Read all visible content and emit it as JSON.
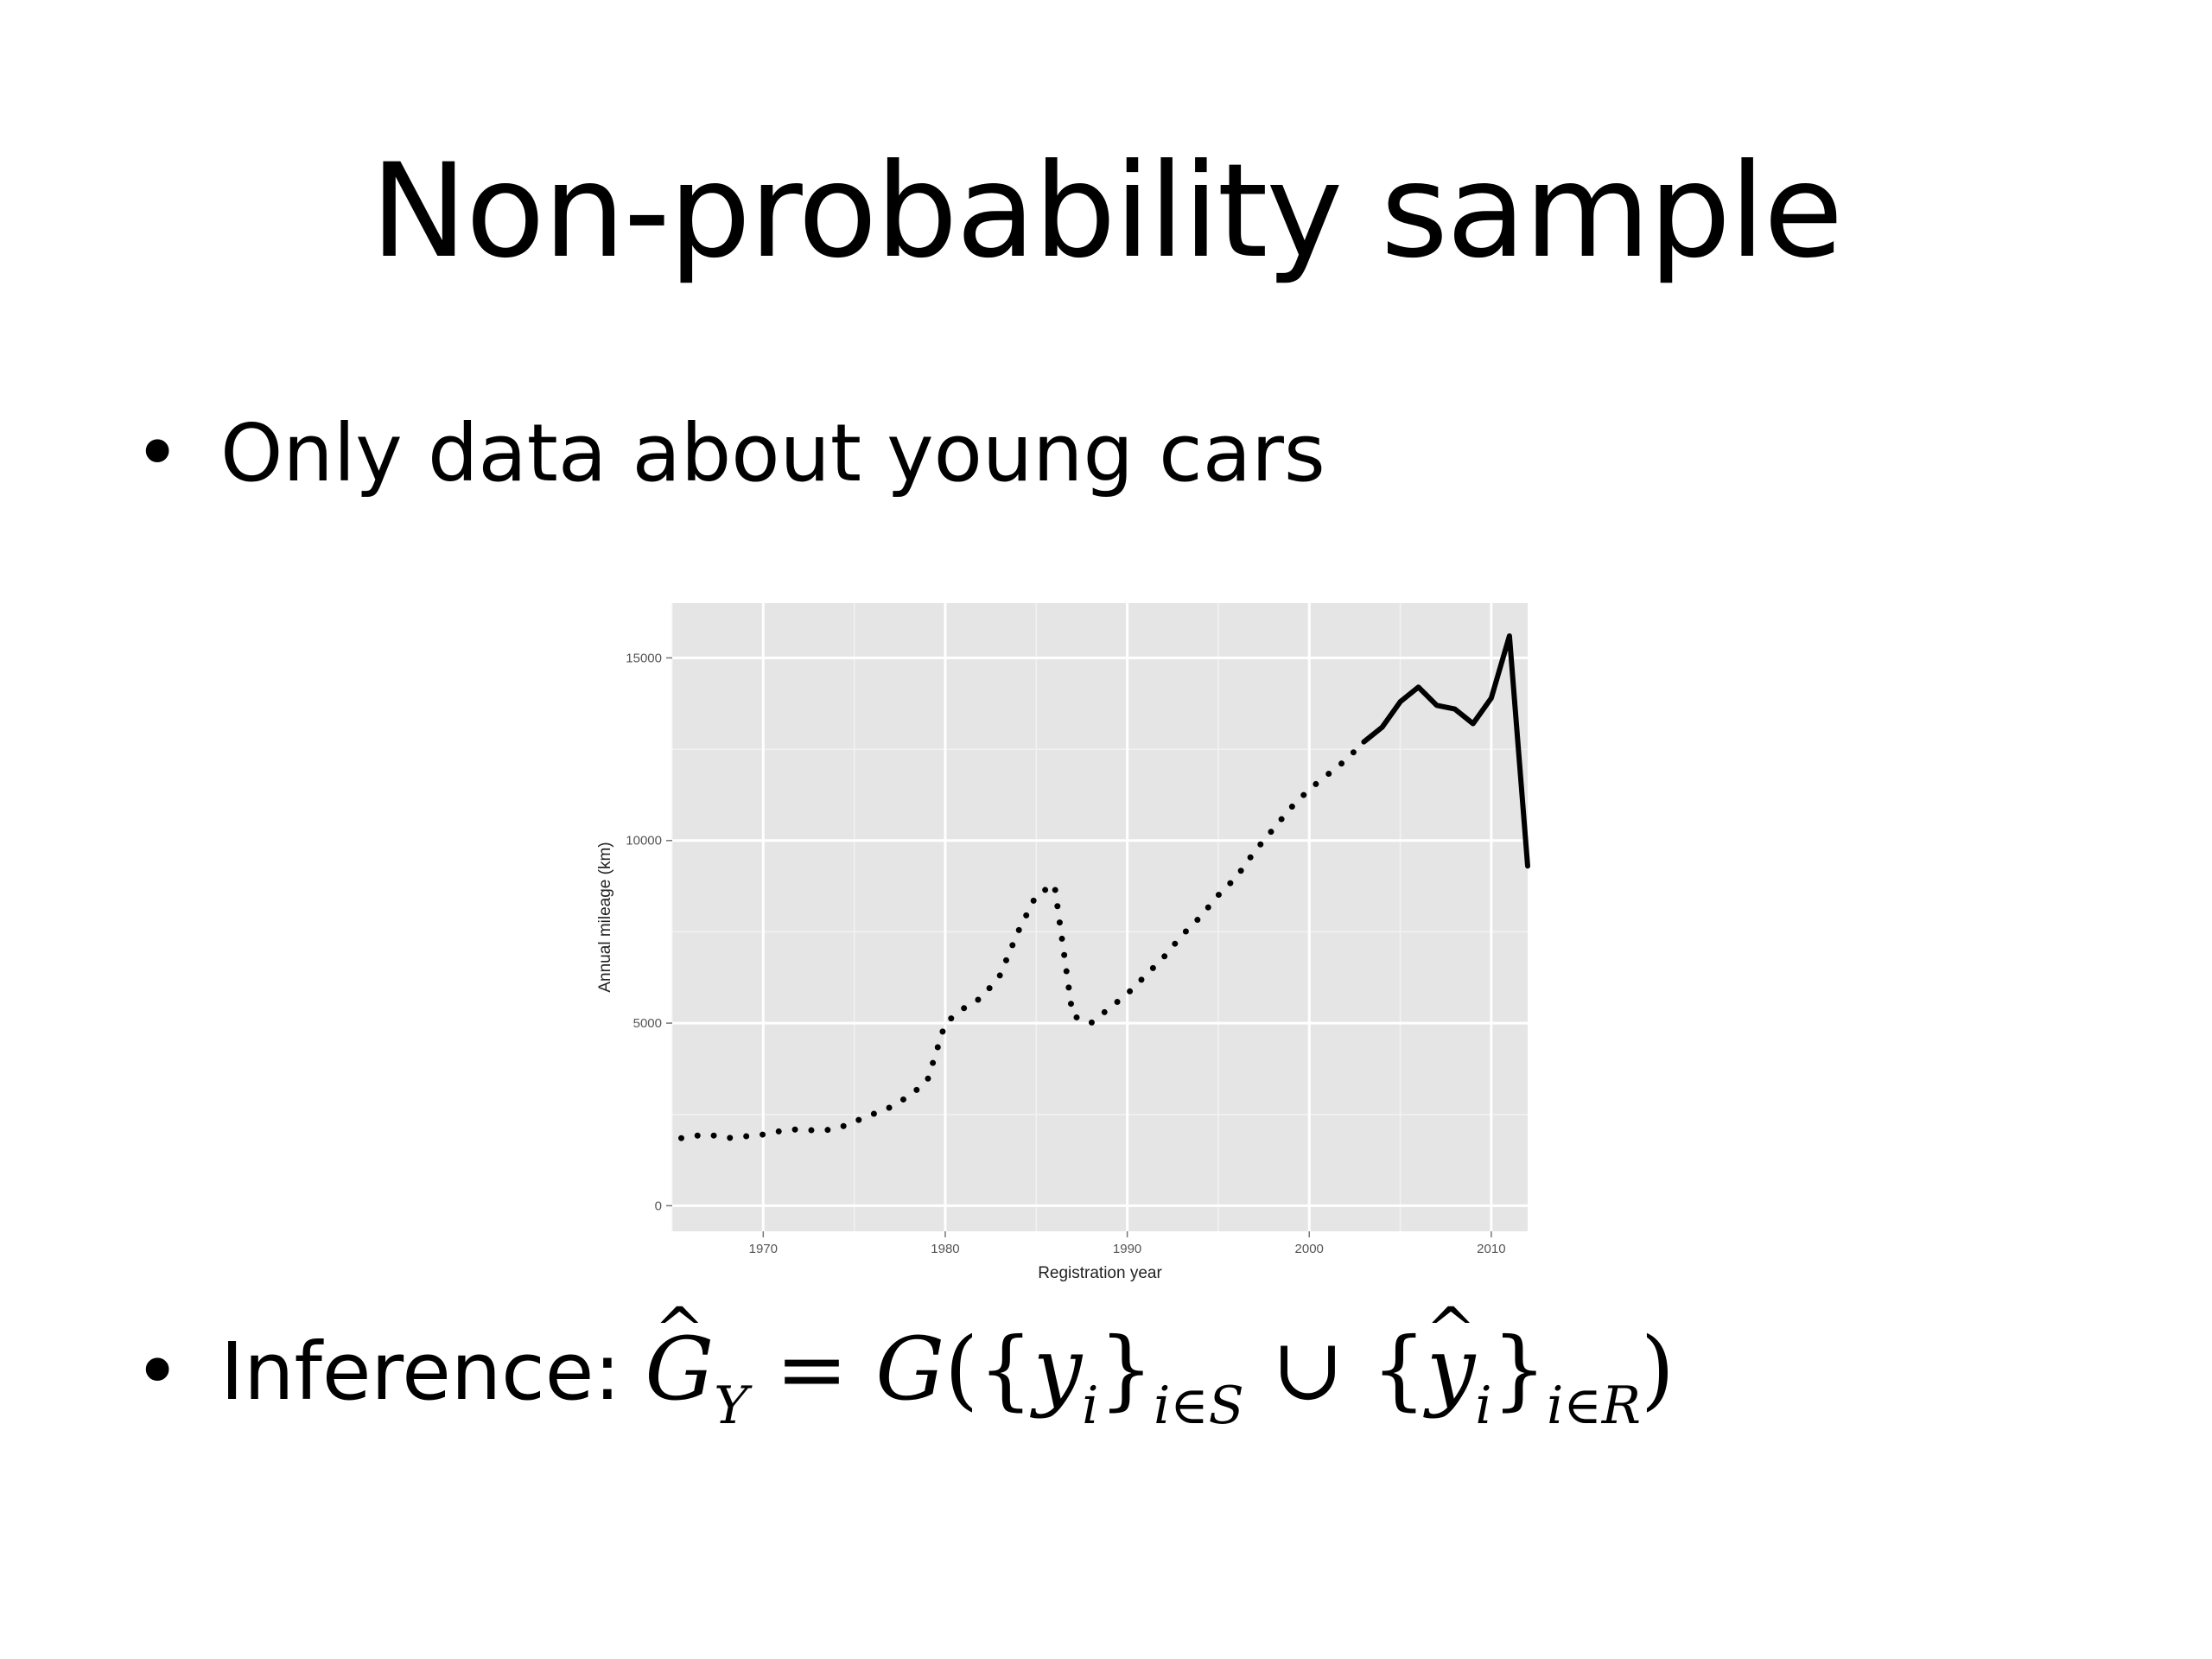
{
  "slide": {
    "title": "Non-probability sample",
    "bullet_symbol": "•",
    "bullets": [
      {
        "text": "Only data about young cars"
      },
      {
        "text": "Inference:",
        "formula": {
          "lhs": "G",
          "lhs_sub": "Y",
          "eq": "=",
          "fn": "G",
          "open": "({",
          "y1": "y",
          "y1_sub": "i",
          "close1": "}",
          "set1_sub": "i∈S",
          "union": "∪",
          "open2": "{",
          "y2": "y",
          "y2_sub": "i",
          "close2": "}",
          "set2_sub": "i∈R",
          "end": ")"
        }
      }
    ]
  },
  "chart_data": {
    "type": "line",
    "xlabel": "Registration year",
    "ylabel": "Annual mileage (km)",
    "xlim": [
      1965,
      2012
    ],
    "ylim": [
      -700,
      16500
    ],
    "x_ticks": [
      1970,
      1980,
      1990,
      2000,
      2010
    ],
    "y_ticks": [
      0,
      5000,
      10000,
      15000
    ],
    "grid": true,
    "background": "#e5e5e5",
    "series": [
      {
        "style": "dotted",
        "x": [
          1965.5,
          1966,
          1967,
          1968,
          1969,
          1970,
          1971,
          1972,
          1973,
          1974,
          1975,
          1976,
          1977,
          1978,
          1979,
          1980,
          1981,
          1982,
          1983,
          1984,
          1985,
          1986,
          1987,
          1988,
          1989,
          1990,
          1991,
          1992,
          1993,
          1994,
          1995,
          1996,
          1997,
          1998,
          1999,
          2000,
          2001,
          2002,
          2003
        ],
        "y": [
          1850,
          1900,
          1950,
          1850,
          1900,
          1950,
          2050,
          2100,
          2050,
          2100,
          2300,
          2500,
          2700,
          3000,
          3400,
          5000,
          5400,
          5700,
          6300,
          7500,
          8500,
          8800,
          5200,
          5000,
          5400,
          5800,
          6300,
          6800,
          7400,
          7900,
          8500,
          9000,
          9700,
          10300,
          10900,
          11400,
          11800,
          12200,
          12700
        ]
      },
      {
        "style": "solid",
        "x": [
          2003,
          2004,
          2005,
          2006,
          2007,
          2008,
          2009,
          2010,
          2011,
          2012
        ],
        "y": [
          12700,
          13100,
          13800,
          14200,
          13700,
          13600,
          13200,
          13900,
          15600,
          9300
        ]
      }
    ]
  }
}
